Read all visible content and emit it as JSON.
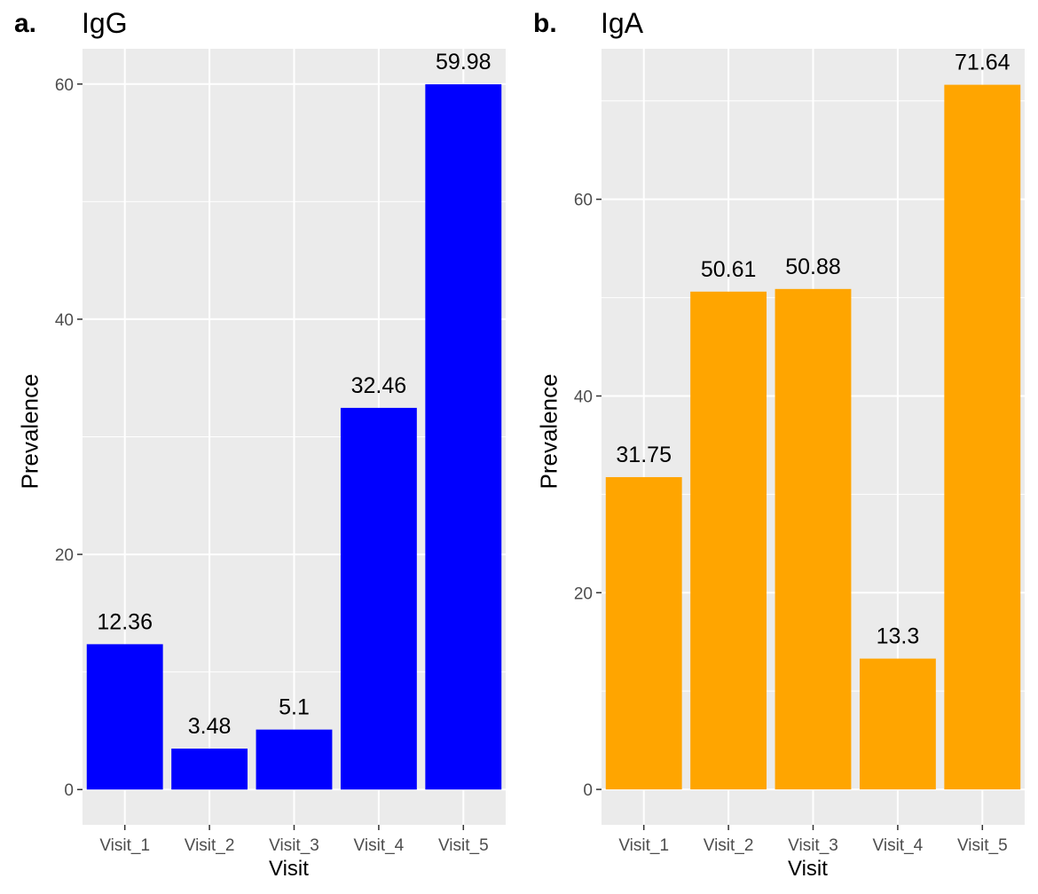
{
  "chart_data": [
    {
      "type": "bar",
      "panel_label": "a.",
      "title": "IgG",
      "xlabel": "Visit",
      "ylabel": "Prevalence",
      "categories": [
        "Visit_1",
        "Visit_2",
        "Visit_3",
        "Visit_4",
        "Visit_5"
      ],
      "values": [
        12.36,
        3.48,
        5.1,
        32.46,
        59.98
      ],
      "value_labels": [
        "12.36",
        "3.48",
        "5.1",
        "32.46",
        "59.98"
      ],
      "ylim": [
        -3,
        63
      ],
      "yticks": [
        0,
        20,
        40,
        60
      ],
      "bar_color": "#0000ff",
      "panel_background": "#ebebeb",
      "grid": true
    },
    {
      "type": "bar",
      "panel_label": "b.",
      "title": "IgA",
      "xlabel": "Visit",
      "ylabel": "Prevalence",
      "categories": [
        "Visit_1",
        "Visit_2",
        "Visit_3",
        "Visit_4",
        "Visit_5"
      ],
      "values": [
        31.75,
        50.61,
        50.88,
        13.3,
        71.64
      ],
      "value_labels": [
        "31.75",
        "50.61",
        "50.88",
        "13.3",
        "71.64"
      ],
      "ylim": [
        -3.6,
        75.3
      ],
      "yticks": [
        0,
        20,
        40,
        60
      ],
      "bar_color": "#ffa500",
      "panel_background": "#ebebeb",
      "grid": true
    }
  ]
}
